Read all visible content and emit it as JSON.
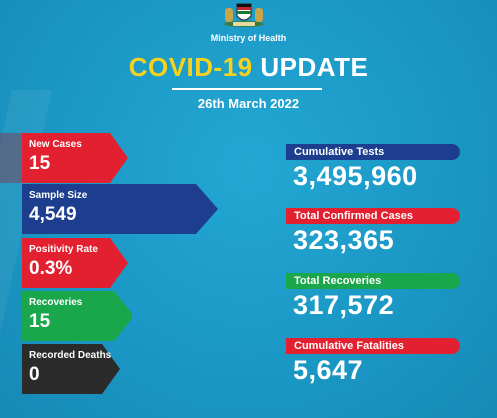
{
  "header": {
    "ministry": "Ministry of Health",
    "title_part1": "COVID-19",
    "title_part2": "UPDATE",
    "date": "26th March 2022"
  },
  "emblem": {
    "icon": "kenya-coat-of-arms-icon"
  },
  "left_stats": [
    {
      "label": "New Cases",
      "value": "15",
      "color": "#e3202f"
    },
    {
      "label": "Sample Size",
      "value": "4,549",
      "color": "#1d3d8f"
    },
    {
      "label": "Positivity Rate",
      "value": "0.3%",
      "color": "#e3202f"
    },
    {
      "label": "Recoveries",
      "value": "15",
      "color": "#1aa64a"
    },
    {
      "label": "Recorded Deaths",
      "value": "0",
      "color": "#2b2b2b"
    }
  ],
  "right_stats": [
    {
      "label": "Cumulative Tests",
      "value": "3,495,960",
      "color": "#1d3d8f"
    },
    {
      "label": "Total Confirmed Cases",
      "value": "323,365",
      "color": "#e3202f"
    },
    {
      "label": "Total Recoveries",
      "value": "317,572",
      "color": "#1aa64a"
    },
    {
      "label": "Cumulative Fatalities",
      "value": "5,647",
      "color": "#e3202f"
    }
  ],
  "colors": {
    "background": "#1b9ac6",
    "title_yellow": "#f7d21c",
    "white": "#ffffff"
  }
}
